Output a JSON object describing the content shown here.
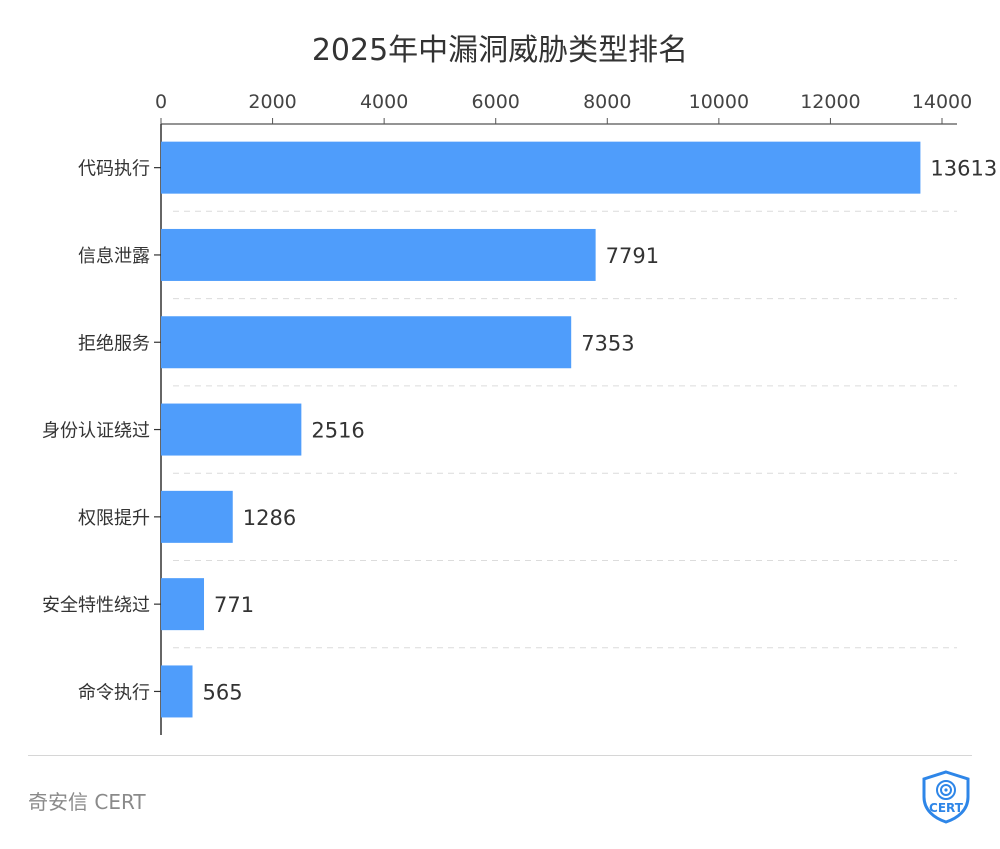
{
  "chart_data": {
    "type": "bar",
    "orientation": "horizontal",
    "title": "2025年中漏洞威胁类型排名",
    "categories": [
      "代码执行",
      "信息泄露",
      "拒绝服务",
      "身份认证绕过",
      "权限提升",
      "安全特性绕过",
      "命令执行"
    ],
    "values": [
      13613,
      7791,
      7353,
      2516,
      1286,
      771,
      565
    ],
    "x_ticks": [
      0,
      2000,
      4000,
      6000,
      8000,
      10000,
      12000,
      14000
    ],
    "xlim": [
      0,
      14000
    ],
    "x_axis_position": "top",
    "grid": "horizontal dashed separators",
    "legend": "none",
    "bar_color": "#4f9dfb",
    "data_labels": true
  },
  "footer": {
    "brand": "奇安信 CERT",
    "logo_text": "CERT",
    "logo_icon": "shield-fingerprint-icon",
    "logo_color": "#2e86e8"
  }
}
